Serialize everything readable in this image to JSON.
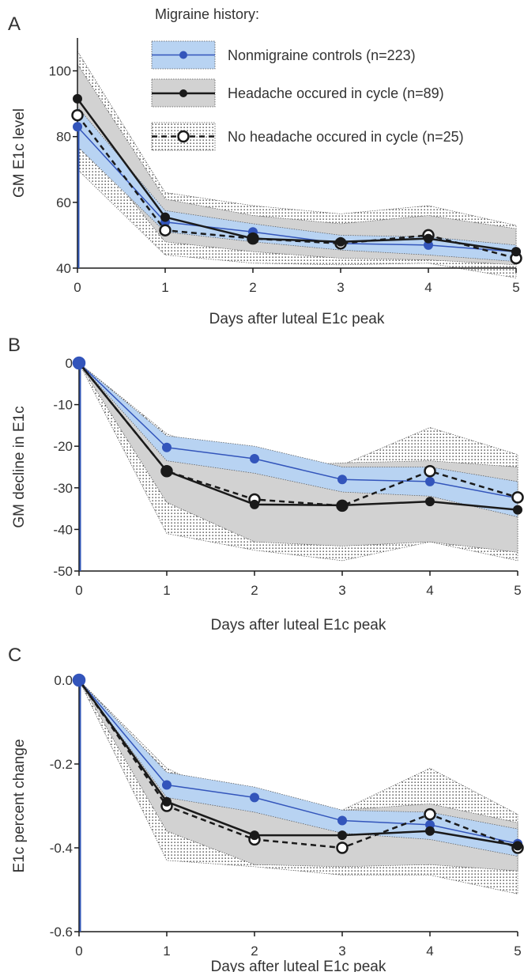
{
  "legend": {
    "title": "Migraine history:",
    "entries": [
      {
        "key": "controls",
        "label": "Nonmigraine controls (n=223)"
      },
      {
        "key": "headache",
        "label": "Headache occured in cycle (n=89)"
      },
      {
        "key": "noheadache",
        "label": "No headache occured in cycle (n=25)"
      }
    ]
  },
  "colors": {
    "controls_line": "#3355bb",
    "controls_band": "#b8d3f2",
    "headache_band": "#d2d2d2",
    "axis_blue": "#2f55b5",
    "ink": "#1a1a1a",
    "text": "#333333"
  },
  "chart_data": [
    {
      "type": "line",
      "panel_letter": "A",
      "title": "",
      "xlabel": "Days after luteal E1c peak",
      "ylabel": "GM E1c level",
      "x": [
        0,
        1,
        2,
        3,
        4,
        5
      ],
      "xlim": [
        0,
        5
      ],
      "ylim": [
        40,
        110
      ],
      "yticks": [
        40,
        60,
        80,
        100
      ],
      "ytick_labels": [
        "40",
        "60",
        "80",
        "100"
      ],
      "xtick_labels": [
        "0",
        "1",
        "2",
        "3",
        "4",
        "5"
      ],
      "grid": false,
      "legend": "top-right",
      "series": [
        {
          "key": "controls",
          "name": "Nonmigraine controls (n=223)",
          "values": [
            83.0,
            54.0,
            51.0,
            47.5,
            47.0,
            45.0
          ],
          "lower": [
            77.0,
            51.0,
            48.0,
            45.5,
            44.0,
            42.0
          ],
          "upper": [
            89.0,
            57.5,
            53.5,
            50.0,
            49.5,
            47.0
          ]
        },
        {
          "key": "headache",
          "name": "Headache occured in cycle (n=89)",
          "values": [
            91.5,
            55.5,
            49.0,
            48.0,
            49.0,
            45.0
          ],
          "lower": [
            81.0,
            48.0,
            45.0,
            43.0,
            42.5,
            41.0
          ],
          "upper": [
            102.0,
            61.0,
            56.0,
            53.5,
            56.0,
            52.0
          ]
        },
        {
          "key": "noheadache",
          "name": "No headache occured in cycle (n=25)",
          "values": [
            86.5,
            51.5,
            49.0,
            47.5,
            50.0,
            43.0
          ],
          "lower": [
            70.0,
            44.0,
            41.5,
            41.0,
            41.5,
            37.0
          ],
          "upper": [
            106.0,
            63.0,
            59.0,
            56.5,
            59.0,
            53.0
          ]
        }
      ]
    },
    {
      "type": "line",
      "panel_letter": "B",
      "title": "",
      "xlabel": "Days after luteal E1c peak",
      "ylabel": "GM decline in E1c",
      "x": [
        0,
        1,
        2,
        3,
        4,
        5
      ],
      "xlim": [
        0,
        5
      ],
      "ylim": [
        -50,
        0
      ],
      "yticks": [
        -50,
        -40,
        -30,
        -20,
        -10,
        0
      ],
      "ytick_labels": [
        "-50",
        "-40",
        "-30",
        "-20",
        "-10",
        "0"
      ],
      "xtick_labels": [
        "0",
        "1",
        "2",
        "3",
        "4",
        "5"
      ],
      "grid": false,
      "legend": "none",
      "series": [
        {
          "key": "controls",
          "name": "Nonmigraine controls (n=223)",
          "values": [
            0,
            -20.3,
            -23.0,
            -28.0,
            -28.5,
            -32.5
          ],
          "lower": [
            0,
            -23.5,
            -26.5,
            -31.0,
            -32.0,
            -37.0
          ],
          "upper": [
            0,
            -17.5,
            -20.0,
            -25.0,
            -25.0,
            -28.5
          ]
        },
        {
          "key": "headache",
          "name": "Headache occured in cycle (n=89)",
          "values": [
            0,
            -26.0,
            -34.0,
            -34.2,
            -33.3,
            -35.3
          ],
          "lower": [
            0,
            -33.5,
            -43.0,
            -44.0,
            -43.0,
            -45.5
          ],
          "upper": [
            0,
            -18.5,
            -25.0,
            -24.0,
            -23.5,
            -25.0
          ]
        },
        {
          "key": "noheadache",
          "name": "No headache occured in cycle (n=25)",
          "values": [
            0,
            -26.0,
            -32.8,
            -34.3,
            -26.0,
            -32.3
          ],
          "lower": [
            0,
            -41.0,
            -45.0,
            -47.5,
            -43.0,
            -47.5
          ],
          "upper": [
            0,
            -17.0,
            -24.5,
            -24.5,
            -15.5,
            -22.0
          ]
        }
      ]
    },
    {
      "type": "line",
      "panel_letter": "C",
      "title": "",
      "xlabel": "Days after luteal E1c peak",
      "ylabel": "E1c percent change",
      "x": [
        0,
        1,
        2,
        3,
        4,
        5
      ],
      "xlim": [
        0,
        5
      ],
      "ylim": [
        -0.6,
        0.0
      ],
      "yticks": [
        -0.6,
        -0.4,
        -0.2,
        0.0
      ],
      "ytick_labels": [
        "-0.6",
        "-0.4",
        "-0.2",
        "0.0"
      ],
      "xtick_labels": [
        "0",
        "1",
        "2",
        "3",
        "4",
        "5"
      ],
      "grid": false,
      "legend": "none",
      "series": [
        {
          "key": "controls",
          "name": "Nonmigraine controls (n=223)",
          "values": [
            0,
            -0.25,
            -0.28,
            -0.335,
            -0.345,
            -0.39
          ],
          "lower": [
            0,
            -0.28,
            -0.315,
            -0.365,
            -0.38,
            -0.42
          ],
          "upper": [
            0,
            -0.22,
            -0.255,
            -0.31,
            -0.315,
            -0.355
          ]
        },
        {
          "key": "headache",
          "name": "Headache occured in cycle (n=89)",
          "values": [
            0,
            -0.29,
            -0.37,
            -0.37,
            -0.36,
            -0.395
          ],
          "lower": [
            0,
            -0.36,
            -0.44,
            -0.445,
            -0.44,
            -0.455
          ],
          "upper": [
            0,
            -0.22,
            -0.3,
            -0.31,
            -0.295,
            -0.34
          ]
        },
        {
          "key": "noheadache",
          "name": "No headache occured in cycle (n=25)",
          "values": [
            0,
            -0.3,
            -0.38,
            -0.4,
            -0.32,
            -0.4
          ],
          "lower": [
            0,
            -0.43,
            -0.445,
            -0.465,
            -0.465,
            -0.51
          ],
          "upper": [
            0,
            -0.21,
            -0.31,
            -0.31,
            -0.21,
            -0.32
          ]
        }
      ]
    }
  ]
}
